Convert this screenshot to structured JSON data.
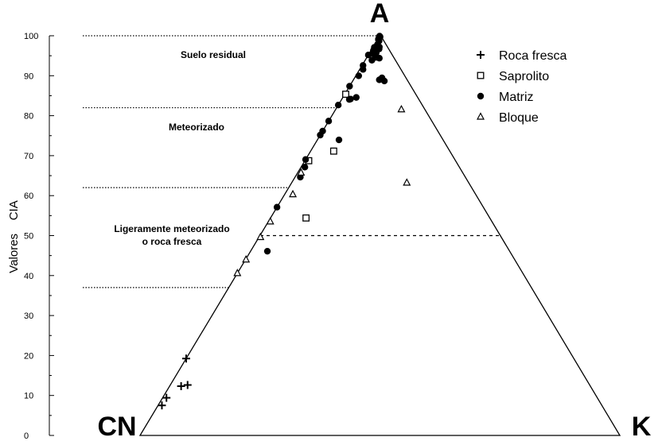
{
  "chart_data": {
    "type": "scatter",
    "title": "",
    "subtitle": "",
    "ylabel": "Valores    CIA",
    "xlabel": "",
    "ylim": [
      0,
      100
    ],
    "y_ticks": [
      0,
      10,
      20,
      30,
      40,
      50,
      60,
      70,
      80,
      90,
      100
    ],
    "grid": false,
    "legend_position": "top-right",
    "vertices": {
      "top": "A",
      "left": "CN",
      "right": "K"
    },
    "colors": {
      "line": "#000000",
      "marker": "#000000"
    },
    "zone_labels": [
      "Suelo residual",
      "Meteorizado",
      "Ligeramente meteorizado",
      "o roca fresca"
    ],
    "reference_lines": [
      100,
      82,
      62,
      50,
      37
    ],
    "series": [
      {
        "name": "Roca fresca",
        "marker": "plus",
        "points": [
          [
            19.2,
            0.0
          ],
          [
            12.6,
            3.6
          ],
          [
            12.3,
            2.4
          ],
          [
            7.5,
            0.8
          ],
          [
            9.4,
            0.8
          ]
        ]
      },
      {
        "name": "Saprolito",
        "marker": "square",
        "points": [
          [
            85.2,
            0.2
          ],
          [
            71.0,
            4.8
          ],
          [
            68.6,
            0.8
          ],
          [
            54.3,
            7.4
          ]
        ]
      },
      {
        "name": "Matriz",
        "marker": "circle",
        "points": [
          [
            99.7,
            0.0
          ],
          [
            99.6,
            0.1
          ],
          [
            99.5,
            0.2
          ],
          [
            99.0,
            0.1
          ],
          [
            98.8,
            0.2
          ],
          [
            98.5,
            0.5
          ],
          [
            97.6,
            0.6
          ],
          [
            97.0,
            1.3
          ],
          [
            96.9,
            0.3
          ],
          [
            96.5,
            1.5
          ],
          [
            96.6,
            0.6
          ],
          [
            96.1,
            0.5
          ],
          [
            96.0,
            1.1
          ],
          [
            95.5,
            1.4
          ],
          [
            95.3,
            0.9
          ],
          [
            95.0,
            0.0
          ],
          [
            94.4,
            1.9
          ],
          [
            94.2,
            2.7
          ],
          [
            93.7,
            1.4
          ],
          [
            92.4,
            0.2
          ],
          [
            91.4,
            0.7
          ],
          [
            89.8,
            0.6
          ],
          [
            89.3,
            5.7
          ],
          [
            88.8,
            5.4
          ],
          [
            88.5,
            6.6
          ],
          [
            87.2,
            0.0
          ],
          [
            84.4,
            2.8
          ],
          [
            84.0,
            1.8
          ],
          [
            83.9,
            1.6
          ],
          [
            82.5,
            0.0
          ],
          [
            78.5,
            0.0
          ],
          [
            76.0,
            0.0
          ],
          [
            75.0,
            0.0
          ],
          [
            73.8,
            4.5
          ],
          [
            68.9,
            0.0
          ],
          [
            67.0,
            0.8
          ],
          [
            64.5,
            1.1
          ],
          [
            57.0,
            0.0
          ],
          [
            46.0,
            3.5
          ]
        ]
      },
      {
        "name": "Bloque",
        "marker": "triangle",
        "points": [
          [
            81.4,
            13.7
          ],
          [
            63.1,
            24.0
          ],
          [
            65.6,
            0.7
          ],
          [
            60.2,
            1.7
          ],
          [
            53.4,
            0.4
          ],
          [
            49.5,
            0.3
          ],
          [
            43.9,
            0.1
          ],
          [
            40.5,
            0.0
          ]
        ]
      }
    ]
  }
}
